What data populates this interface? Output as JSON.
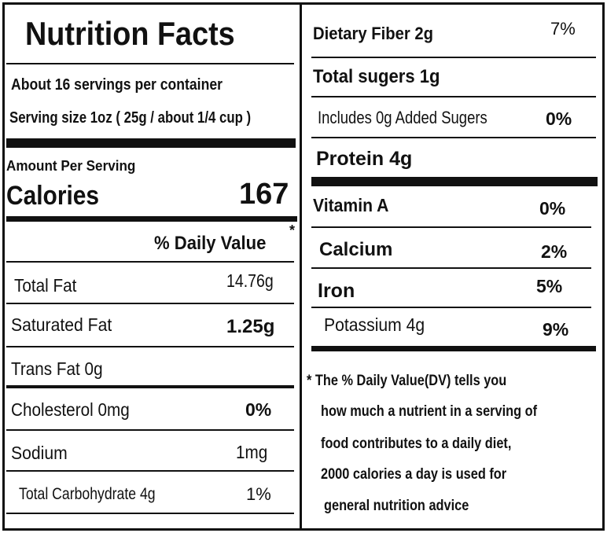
{
  "left": {
    "title": "Nutrition Facts",
    "servings_per_container": "About 16 servings per container",
    "serving_size": "Serving size 1oz ( 25g / about 1/4 cup )",
    "amount_per_serving": "Amount Per Serving",
    "calories_label": "Calories",
    "calories_value": "167",
    "daily_value_header": "% Daily Value",
    "daily_value_asterisk": "*",
    "rows": [
      {
        "label": "Total Fat",
        "value": "14.76g"
      },
      {
        "label": "Saturated Fat",
        "value": "1.25g"
      },
      {
        "label": "Trans Fat 0g",
        "value": ""
      },
      {
        "label": "Cholesterol  0mg",
        "value": "0%"
      },
      {
        "label": "Sodium",
        "value": "1mg"
      },
      {
        "label": "Total Carbohydrate 4g",
        "value": "1%"
      }
    ]
  },
  "right": {
    "rows": [
      {
        "label": "Dietary Fiber 2g",
        "value": "7%"
      },
      {
        "label": "Total sugers 1g",
        "value": ""
      },
      {
        "label": "Includes 0g Added Sugers",
        "value": "0%"
      },
      {
        "label": "Protein 4g",
        "value": ""
      }
    ],
    "vitamins": [
      {
        "label": "Vitamin A",
        "value": "0%"
      },
      {
        "label": "Calcium",
        "value": "2%"
      },
      {
        "label": "Iron",
        "value": "5%"
      },
      {
        "label": "Potassium 4g",
        "value": "9%"
      }
    ],
    "footnote": [
      "* The % Daily Value(DV)  tells you",
      "how much a nutrient in a serving of",
      "food contributes to a daily diet,",
      "2000 calories a day is used for",
      "general nutrition advice"
    ]
  }
}
